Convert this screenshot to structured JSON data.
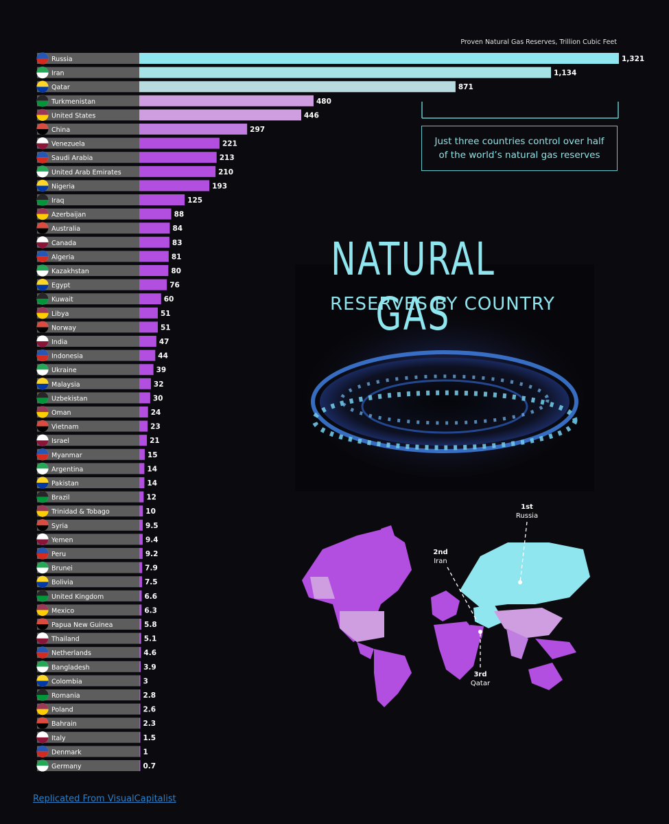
{
  "unit_label": "Proven Natural Gas Reserves, Trillion Cubic Feet",
  "callout_text": "Just three countries control over half of the world’s natural gas reserves",
  "title_main": "NATURAL GAS",
  "title_sub": "RESERVES BY COUNTRY",
  "footer_text": "Replicated From VisualCapitalist",
  "map_labels": [
    {
      "rank": "1st",
      "country": "Russia"
    },
    {
      "rank": "2nd",
      "country": "Iran"
    },
    {
      "rank": "3rd",
      "country": "Qatar"
    }
  ],
  "colors": {
    "top": "#8fe6ee",
    "second": "#a6e3e6",
    "third": "#b8dbe0",
    "lilac": "#cf9ee0",
    "mauve": "#c07ee0",
    "purple": "#b24fe0",
    "label_bg": "#5d5d5d"
  },
  "chart_data": {
    "type": "bar",
    "orientation": "horizontal",
    "title": "",
    "xlabel": "Proven Natural Gas Reserves, Trillion Cubic Feet",
    "ylabel": "",
    "xlim": [
      0,
      1321
    ],
    "grid": false,
    "categories": [
      "Russia",
      "Iran",
      "Qatar",
      "Turkmenistan",
      "United States",
      "China",
      "Venezuela",
      "Saudi Arabia",
      "United Arab Emirates",
      "Nigeria",
      "Iraq",
      "Azerbaijan",
      "Australia",
      "Canada",
      "Algeria",
      "Kazakhstan",
      "Egypt",
      "Kuwait",
      "Libya",
      "Norway",
      "India",
      "Indonesia",
      "Ukraine",
      "Malaysia",
      "Uzbekistan",
      "Oman",
      "Vietnam",
      "Israel",
      "Myanmar",
      "Argentina",
      "Pakistan",
      "Brazil",
      "Trinidad & Tobago",
      "Syria",
      "Yemen",
      "Peru",
      "Brunei",
      "Bolivia",
      "United Kingdom",
      "Mexico",
      "Papua New Guinea",
      "Thailand",
      "Netherlands",
      "Bangladesh",
      "Colombia",
      "Romania",
      "Poland",
      "Bahrain",
      "Italy",
      "Denmark",
      "Germany"
    ],
    "values": [
      1321,
      1134,
      871,
      480,
      446,
      297,
      221,
      213,
      210,
      193,
      125,
      88,
      84,
      83,
      81,
      80,
      76,
      60,
      51,
      51,
      47,
      44,
      39,
      32,
      30,
      24,
      23,
      21,
      15,
      14,
      14,
      12,
      10,
      9.5,
      9.4,
      9.2,
      7.9,
      7.5,
      6.6,
      6.3,
      5.8,
      5.1,
      4.6,
      3.9,
      3,
      2.8,
      2.6,
      2.3,
      1.5,
      1,
      0.7
    ],
    "value_labels": [
      "1,321",
      "1,134",
      "871",
      "480",
      "446",
      "297",
      "221",
      "213",
      "210",
      "193",
      "125",
      "88",
      "84",
      "83",
      "81",
      "80",
      "76",
      "60",
      "51",
      "51",
      "47",
      "44",
      "39",
      "32",
      "30",
      "24",
      "23",
      "21",
      "15",
      "14",
      "14",
      "12",
      "10",
      "9.5",
      "9.4",
      "9.2",
      "7.9",
      "7.5",
      "6.6",
      "6.3",
      "5.8",
      "5.1",
      "4.6",
      "3.9",
      "3",
      "2.8",
      "2.6",
      "2.3",
      "1.5",
      "1",
      "0.7"
    ]
  }
}
